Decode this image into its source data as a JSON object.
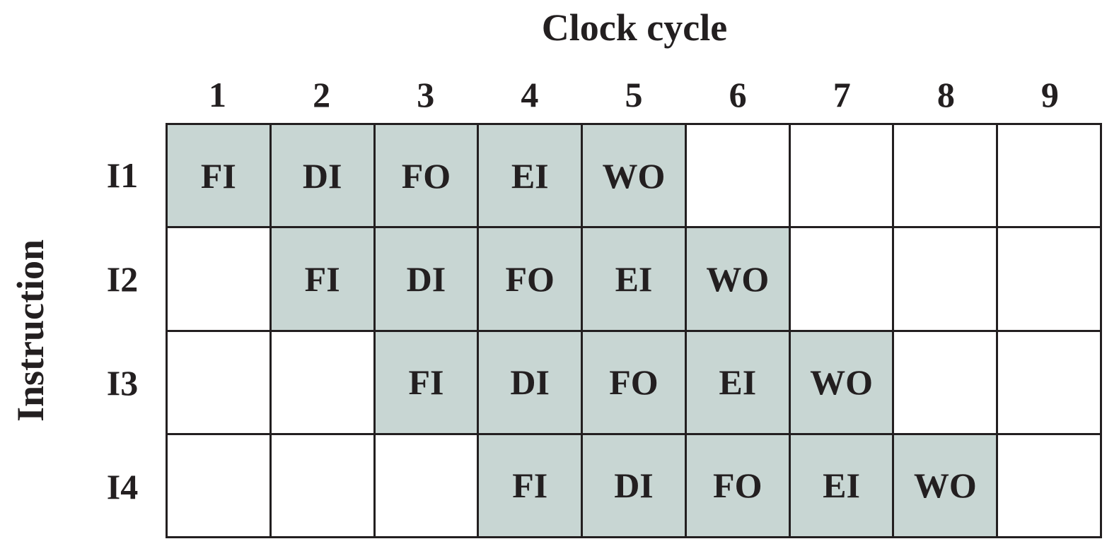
{
  "title": "Clock cycle",
  "yaxis_label": "Instruction",
  "cycles": [
    "1",
    "2",
    "3",
    "4",
    "5",
    "6",
    "7",
    "8",
    "9"
  ],
  "stage_fill_color": "#c8d6d3",
  "instructions": [
    {
      "label": "I1",
      "start": 1,
      "stages": [
        "FI",
        "DI",
        "FO",
        "EI",
        "WO"
      ]
    },
    {
      "label": "I2",
      "start": 2,
      "stages": [
        "FI",
        "DI",
        "FO",
        "EI",
        "WO"
      ]
    },
    {
      "label": "I3",
      "start": 3,
      "stages": [
        "FI",
        "DI",
        "FO",
        "EI",
        "WO"
      ]
    },
    {
      "label": "I4",
      "start": 4,
      "stages": [
        "FI",
        "DI",
        "FO",
        "EI",
        "WO"
      ]
    }
  ]
}
